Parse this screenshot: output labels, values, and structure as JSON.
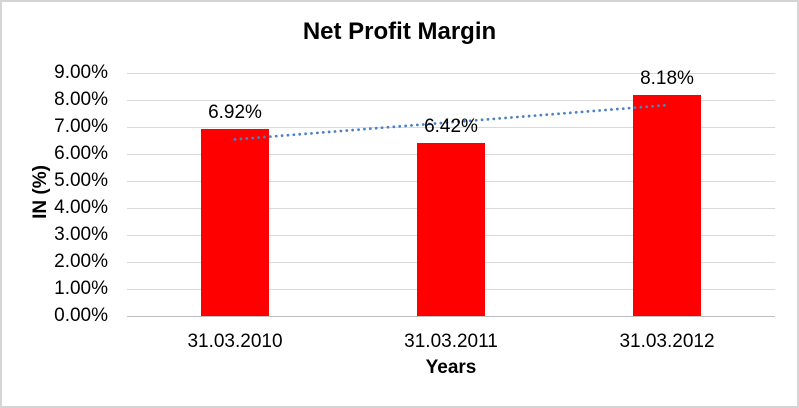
{
  "chart_data": {
    "type": "bar",
    "title": "Net Profit Margin",
    "xlabel": "Years",
    "ylabel": "IN (%)",
    "categories": [
      "31.03.2010",
      "31.03.2011",
      "31.03.2012"
    ],
    "values": [
      6.92,
      6.42,
      8.18
    ],
    "data_labels": [
      "6.92%",
      "6.42%",
      "8.18%"
    ],
    "y_ticks": [
      "0.00%",
      "1.00%",
      "2.00%",
      "3.00%",
      "4.00%",
      "5.00%",
      "6.00%",
      "7.00%",
      "8.00%",
      "9.00%"
    ],
    "ylim": [
      0,
      9
    ],
    "grid": true,
    "legend": "none",
    "bar_color": "#ff0000",
    "gridline_color": "#d9d9d9",
    "trendline": {
      "type": "linear",
      "style": "dotted",
      "color": "#4a82c4",
      "start_value": 6.54,
      "end_value": 7.81
    }
  }
}
